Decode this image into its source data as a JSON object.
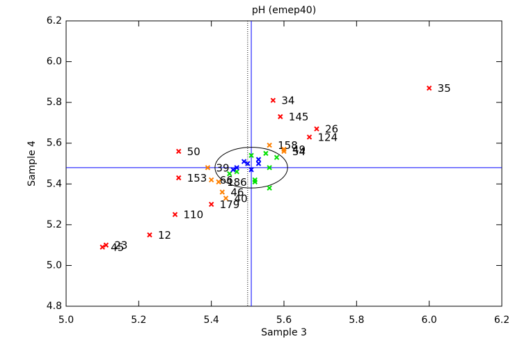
{
  "chart_data": {
    "type": "scatter",
    "title": "pH (emep40)",
    "x_label": "Sample 3",
    "y_label": "Sample 4",
    "xlim": [
      5.0,
      6.2
    ],
    "ylim": [
      4.8,
      6.2
    ],
    "xticks": [
      {
        "value": 5,
        "label": "5.0"
      },
      5.2,
      5.4,
      5.6,
      5.8,
      {
        "value": 6,
        "label": "6.0"
      },
      6.2
    ],
    "yticks": [
      4.8,
      {
        "value": 5,
        "label": "5.0"
      },
      5.2,
      5.4,
      5.6,
      5.8,
      {
        "value": 6,
        "label": "6.0"
      },
      6.2
    ],
    "mean": [
      5.51,
      5.48
    ],
    "reference_x": 5.5,
    "ellipse_radius": [
      0.1,
      0.1
    ],
    "mean_line_color": "#0000ff",
    "series": [
      {
        "color": "#ff0000",
        "x": [
          6.0,
          5.57,
          5.59,
          5.69,
          5.67,
          5.31,
          5.31,
          5.4,
          5.3,
          5.23,
          5.1,
          5.11
        ],
        "y": [
          5.87,
          5.81,
          5.73,
          5.67,
          5.63,
          5.56,
          5.43,
          5.3,
          5.25,
          5.15,
          5.09,
          5.1
        ],
        "labels": [
          "35",
          "34",
          "145",
          "26",
          "124",
          "50",
          "153",
          "179",
          "110",
          "12",
          "45",
          "23"
        ]
      },
      {
        "color": "#ff8000",
        "x": [
          5.56,
          5.6,
          5.6,
          5.39,
          5.4,
          5.42,
          5.43,
          5.44
        ],
        "y": [
          5.59,
          5.57,
          5.56,
          5.48,
          5.42,
          5.41,
          5.36,
          5.33
        ],
        "labels": [
          "158",
          "49",
          "54",
          "39",
          "66",
          "186",
          "46",
          "40"
        ]
      },
      {
        "color": "#00e000",
        "x": [
          5.51,
          5.55,
          5.58,
          5.56,
          5.56,
          5.52,
          5.52,
          5.45,
          5.47
        ],
        "y": [
          5.54,
          5.55,
          5.53,
          5.48,
          5.38,
          5.42,
          5.41,
          5.45,
          5.46
        ]
      },
      {
        "color": "#0000ff",
        "x": [
          5.46,
          5.47,
          5.49,
          5.5,
          5.53,
          5.53,
          5.51
        ],
        "y": [
          5.47,
          5.48,
          5.51,
          5.5,
          5.52,
          5.5,
          5.47
        ]
      }
    ]
  }
}
